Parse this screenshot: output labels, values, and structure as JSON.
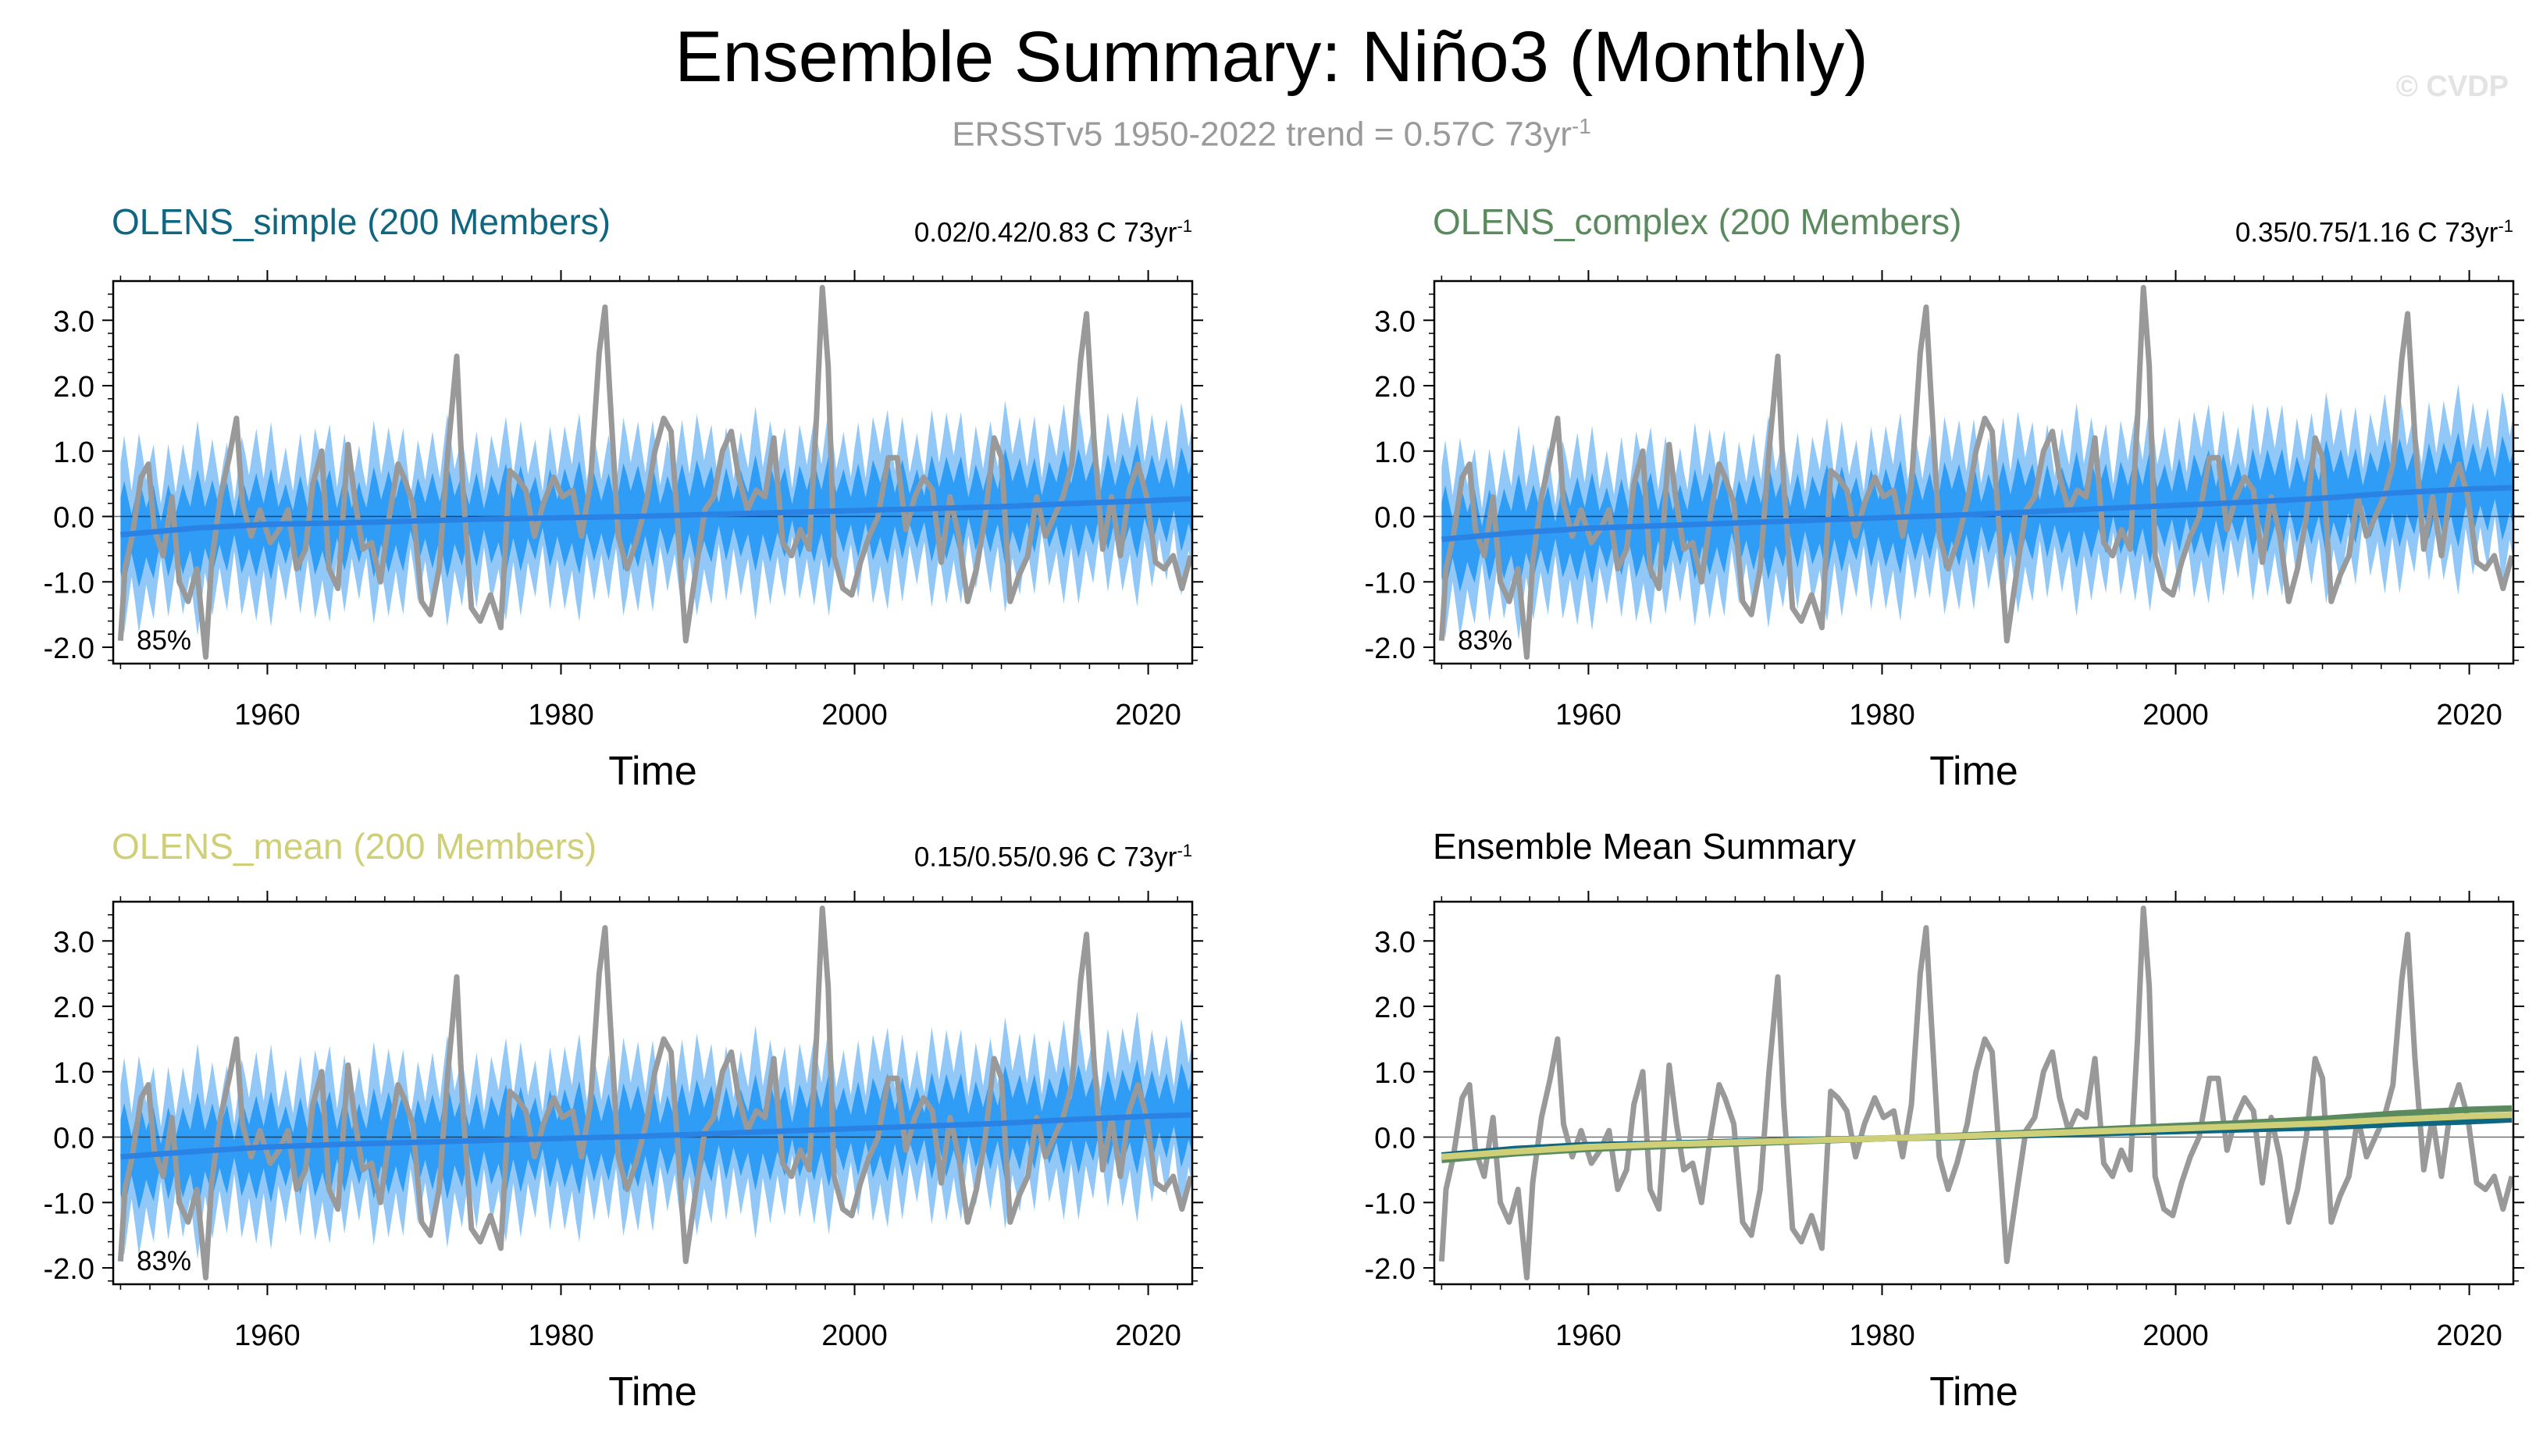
{
  "figure": {
    "title": "Ensemble Summary: Niño3 (Monthly)",
    "subtitle_main": "ERSSTv5 1950-2022 trend = 0.57C 73yr",
    "subtitle_exp": "-1",
    "copyright": "© CVDP"
  },
  "colors": {
    "observed": "#999999",
    "band_outer": "#92c8f8",
    "band_inner": "#2f9cf6",
    "ens_mean_line": "#2a82e4",
    "zero_line": "#000000",
    "olens_simple": "#0f6681",
    "olens_complex": "#5a8a5e",
    "olens_mean": "#cfcf78"
  },
  "chart_data": [
    {
      "type": "line",
      "panel_title": "OLENS_simple (200 Members)",
      "title_color": "#0f6681",
      "trend_main": "0.02/0.42/0.83 C 73yr",
      "trend_exp": "-1",
      "percent_label": "85%",
      "xlabel": "Time",
      "ylabel": "",
      "xlim": [
        1949.5,
        2023.0
      ],
      "ylim": [
        -2.25,
        3.6
      ],
      "yticks": [
        3.0,
        2.0,
        1.0,
        0.0,
        -1.0,
        -2.0
      ],
      "ytick_labels": [
        "3.0",
        "2.0",
        "1.0",
        "0.0",
        "-1.0",
        "-2.0"
      ],
      "xticks": [
        1960,
        1980,
        2000,
        2020
      ],
      "xtick_labels": [
        "1960",
        "1980",
        "2000",
        "2020"
      ],
      "ensemble_mean": {
        "x": [
          1950,
          1955,
          1960,
          1965,
          1970,
          1975,
          1980,
          1985,
          1990,
          1995,
          2000,
          2005,
          2010,
          2015,
          2020,
          2022.9
        ],
        "y": [
          -0.28,
          -0.18,
          -0.12,
          -0.1,
          -0.07,
          -0.04,
          -0.02,
          0.0,
          0.03,
          0.06,
          0.09,
          0.12,
          0.15,
          0.2,
          0.24,
          0.27
        ]
      },
      "band_inner_halfwidth": 0.75,
      "band_outer_halfwidth": 1.4
    },
    {
      "type": "line",
      "panel_title": "OLENS_complex (200 Members)",
      "title_color": "#5a8a5e",
      "trend_main": "0.35/0.75/1.16 C 73yr",
      "trend_exp": "-1",
      "percent_label": "83%",
      "xlabel": "Time",
      "ylabel": "",
      "xlim": [
        1949.5,
        2023.0
      ],
      "ylim": [
        -2.25,
        3.6
      ],
      "yticks": [
        3.0,
        2.0,
        1.0,
        0.0,
        -1.0,
        -2.0
      ],
      "ytick_labels": [
        "3.0",
        "2.0",
        "1.0",
        "0.0",
        "-1.0",
        "-2.0"
      ],
      "xticks": [
        1960,
        1980,
        2000,
        2020
      ],
      "xtick_labels": [
        "1960",
        "1980",
        "2000",
        "2020"
      ],
      "ensemble_mean": {
        "x": [
          1950,
          1955,
          1960,
          1965,
          1970,
          1975,
          1980,
          1985,
          1990,
          1995,
          2000,
          2005,
          2010,
          2015,
          2020,
          2022.9
        ],
        "y": [
          -0.35,
          -0.25,
          -0.18,
          -0.14,
          -0.1,
          -0.06,
          -0.02,
          0.02,
          0.07,
          0.12,
          0.17,
          0.22,
          0.28,
          0.36,
          0.42,
          0.44
        ]
      },
      "band_inner_halfwidth": 0.75,
      "band_outer_halfwidth": 1.4
    },
    {
      "type": "line",
      "panel_title": "OLENS_mean (200 Members)",
      "title_color": "#cfcf78",
      "trend_main": "0.15/0.55/0.96 C 73yr",
      "trend_exp": "-1",
      "percent_label": "83%",
      "xlabel": "Time",
      "ylabel": "",
      "xlim": [
        1949.5,
        2023.0
      ],
      "ylim": [
        -2.25,
        3.6
      ],
      "yticks": [
        3.0,
        2.0,
        1.0,
        0.0,
        -1.0,
        -2.0
      ],
      "ytick_labels": [
        "3.0",
        "2.0",
        "1.0",
        "0.0",
        "-1.0",
        "-2.0"
      ],
      "xticks": [
        1960,
        1980,
        2000,
        2020
      ],
      "xtick_labels": [
        "1960",
        "1980",
        "2000",
        "2020"
      ],
      "ensemble_mean": {
        "x": [
          1950,
          1955,
          1960,
          1965,
          1970,
          1975,
          1980,
          1985,
          1990,
          1995,
          2000,
          2005,
          2010,
          2015,
          2020,
          2022.9
        ],
        "y": [
          -0.3,
          -0.22,
          -0.15,
          -0.11,
          -0.08,
          -0.05,
          -0.02,
          0.01,
          0.05,
          0.09,
          0.13,
          0.17,
          0.21,
          0.27,
          0.32,
          0.34
        ]
      },
      "band_inner_halfwidth": 0.75,
      "band_outer_halfwidth": 1.4
    },
    {
      "type": "line",
      "panel_title": "Ensemble Mean Summary",
      "title_color": "#000000",
      "xlabel": "Time",
      "ylabel": "",
      "xlim": [
        1949.5,
        2023.0
      ],
      "ylim": [
        -2.25,
        3.6
      ],
      "yticks": [
        3.0,
        2.0,
        1.0,
        0.0,
        -1.0,
        -2.0
      ],
      "ytick_labels": [
        "3.0",
        "2.0",
        "1.0",
        "0.0",
        "-1.0",
        "-2.0"
      ],
      "xticks": [
        1960,
        1980,
        2000,
        2020
      ],
      "xtick_labels": [
        "1960",
        "1980",
        "2000",
        "2020"
      ],
      "series": [
        {
          "name": "OLENS_simple",
          "color": "#0f6681",
          "x": [
            1950,
            1955,
            1960,
            1965,
            1970,
            1975,
            1980,
            1985,
            1990,
            1995,
            2000,
            2005,
            2010,
            2015,
            2020,
            2022.9
          ],
          "y": [
            -0.28,
            -0.18,
            -0.12,
            -0.1,
            -0.07,
            -0.04,
            -0.02,
            0.0,
            0.03,
            0.06,
            0.09,
            0.12,
            0.15,
            0.2,
            0.24,
            0.27
          ]
        },
        {
          "name": "OLENS_complex",
          "color": "#5a8a5e",
          "x": [
            1950,
            1955,
            1960,
            1965,
            1970,
            1975,
            1980,
            1985,
            1990,
            1995,
            2000,
            2005,
            2010,
            2015,
            2020,
            2022.9
          ],
          "y": [
            -0.35,
            -0.25,
            -0.18,
            -0.14,
            -0.1,
            -0.06,
            -0.02,
            0.02,
            0.07,
            0.12,
            0.17,
            0.22,
            0.28,
            0.36,
            0.42,
            0.44
          ]
        },
        {
          "name": "OLENS_mean",
          "color": "#cfcf78",
          "x": [
            1950,
            1955,
            1960,
            1965,
            1970,
            1975,
            1980,
            1985,
            1990,
            1995,
            2000,
            2005,
            2010,
            2015,
            2020,
            2022.9
          ],
          "y": [
            -0.3,
            -0.22,
            -0.15,
            -0.11,
            -0.08,
            -0.05,
            -0.02,
            0.01,
            0.05,
            0.09,
            0.13,
            0.17,
            0.21,
            0.27,
            0.32,
            0.34
          ]
        }
      ]
    }
  ],
  "observed": {
    "name": "ERSSTv5",
    "x": [
      1950.0,
      1950.3,
      1950.8,
      1951.4,
      1951.9,
      1952.3,
      1952.9,
      1953.5,
      1954.0,
      1954.6,
      1955.2,
      1955.8,
      1956.2,
      1956.8,
      1957.4,
      1957.9,
      1958.3,
      1958.9,
      1959.5,
      1960.2,
      1960.8,
      1961.4,
      1962.0,
      1962.6,
      1963.1,
      1963.7,
      1964.2,
      1964.8,
      1965.5,
      1966.0,
      1966.5,
      1967.1,
      1967.7,
      1968.3,
      1968.9,
      1969.3,
      1969.9,
      1970.5,
      1971.1,
      1971.7,
      1972.3,
      1972.9,
      1973.3,
      1973.9,
      1974.5,
      1975.2,
      1975.9,
      1976.5,
      1977.0,
      1977.6,
      1978.2,
      1978.8,
      1979.5,
      1980.1,
      1980.8,
      1981.4,
      1982.0,
      1982.6,
      1983.0,
      1983.3,
      1983.9,
      1984.5,
      1985.1,
      1985.8,
      1986.4,
      1987.0,
      1987.5,
      1988.1,
      1988.5,
      1989.2,
      1989.8,
      1990.4,
      1991.0,
      1991.6,
      1992.1,
      1992.7,
      1993.3,
      1993.9,
      1994.5,
      1995.1,
      1995.7,
      1996.3,
      1996.9,
      1997.4,
      1997.8,
      1998.2,
      1998.6,
      1999.2,
      1999.8,
      2000.4,
      2001.0,
      2001.6,
      2002.3,
      2002.9,
      2003.5,
      2004.1,
      2004.7,
      2005.3,
      2005.9,
      2006.5,
      2007.1,
      2007.7,
      2008.3,
      2008.9,
      2009.5,
      2010.0,
      2010.6,
      2011.2,
      2011.8,
      2012.4,
      2013.0,
      2013.6,
      2014.2,
      2014.8,
      2015.4,
      2015.8,
      2016.3,
      2016.9,
      2017.5,
      2018.1,
      2018.7,
      2019.3,
      2019.9,
      2020.5,
      2021.1,
      2021.7,
      2022.3,
      2022.9
    ],
    "y": [
      -1.9,
      -0.8,
      -0.3,
      0.6,
      0.8,
      -0.2,
      -0.6,
      0.3,
      -1.0,
      -1.3,
      -0.8,
      -2.15,
      -0.7,
      0.3,
      0.9,
      1.5,
      0.2,
      -0.3,
      0.1,
      -0.4,
      -0.2,
      0.1,
      -0.8,
      -0.5,
      0.5,
      1.0,
      -0.8,
      -1.1,
      1.1,
      0.2,
      -0.5,
      -0.4,
      -1.0,
      0.0,
      0.8,
      0.6,
      0.2,
      -1.3,
      -1.5,
      -0.8,
      1.0,
      2.45,
      0.5,
      -1.4,
      -1.6,
      -1.2,
      -1.7,
      0.7,
      0.6,
      0.4,
      -0.3,
      0.2,
      0.6,
      0.3,
      0.4,
      -0.3,
      0.5,
      2.5,
      3.2,
      2.0,
      -0.3,
      -0.8,
      -0.4,
      0.2,
      1.0,
      1.5,
      1.3,
      -0.6,
      -1.9,
      -0.8,
      0.1,
      0.3,
      1.0,
      1.3,
      0.6,
      0.1,
      0.4,
      0.3,
      1.2,
      -0.4,
      -0.6,
      -0.2,
      -0.5,
      1.5,
      3.5,
      2.3,
      -0.6,
      -1.1,
      -1.2,
      -0.7,
      -0.3,
      0.0,
      0.9,
      0.9,
      -0.2,
      0.3,
      0.6,
      0.4,
      -0.7,
      0.3,
      -0.3,
      -1.3,
      -0.8,
      0.0,
      1.2,
      0.9,
      -1.3,
      -0.9,
      -0.6,
      0.3,
      -0.3,
      0.0,
      0.3,
      0.8,
      2.4,
      3.1,
      1.2,
      -0.5,
      0.3,
      -0.6,
      0.4,
      0.8,
      0.3,
      -0.7,
      -0.8,
      -0.6,
      -1.1,
      -0.6
    ]
  }
}
